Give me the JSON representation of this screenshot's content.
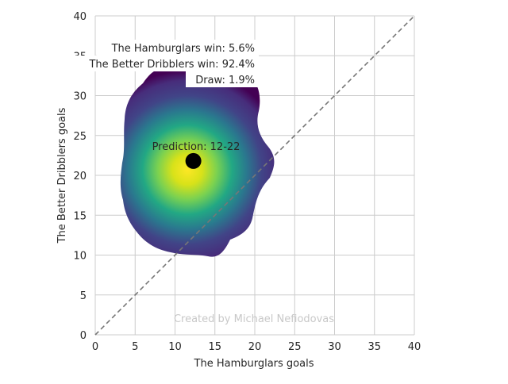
{
  "chart_data": {
    "type": "heatmap",
    "xlabel": "The Hamburglars goals",
    "ylabel": "The Better Dribblers goals",
    "xlim": [
      0,
      40
    ],
    "ylim": [
      0,
      40
    ],
    "xticks": [
      0,
      5,
      10,
      15,
      20,
      25,
      30,
      35,
      40
    ],
    "yticks": [
      0,
      5,
      10,
      15,
      20,
      25,
      30,
      35,
      40
    ],
    "grid": true,
    "colormap": "viridis",
    "density_peak": {
      "x": 11.5,
      "y": 20.5
    },
    "density_extent": {
      "x": [
        3.3,
        23
      ],
      "y": [
        9.6,
        33.2
      ]
    },
    "prediction_point": {
      "x": 12.3,
      "y": 21.8
    },
    "diagonal": {
      "from": [
        0,
        0
      ],
      "to": [
        40,
        40
      ],
      "style": "dashed",
      "color": "#777777"
    },
    "annotations": {
      "home_win": "The Hamburglars win: 5.6%",
      "away_win": "The Better Dribblers win: 92.4%",
      "draw": "Draw: 1.9%",
      "prediction": "Prediction: 12-22",
      "credit": "Created by Michael Nefiodovas"
    }
  }
}
